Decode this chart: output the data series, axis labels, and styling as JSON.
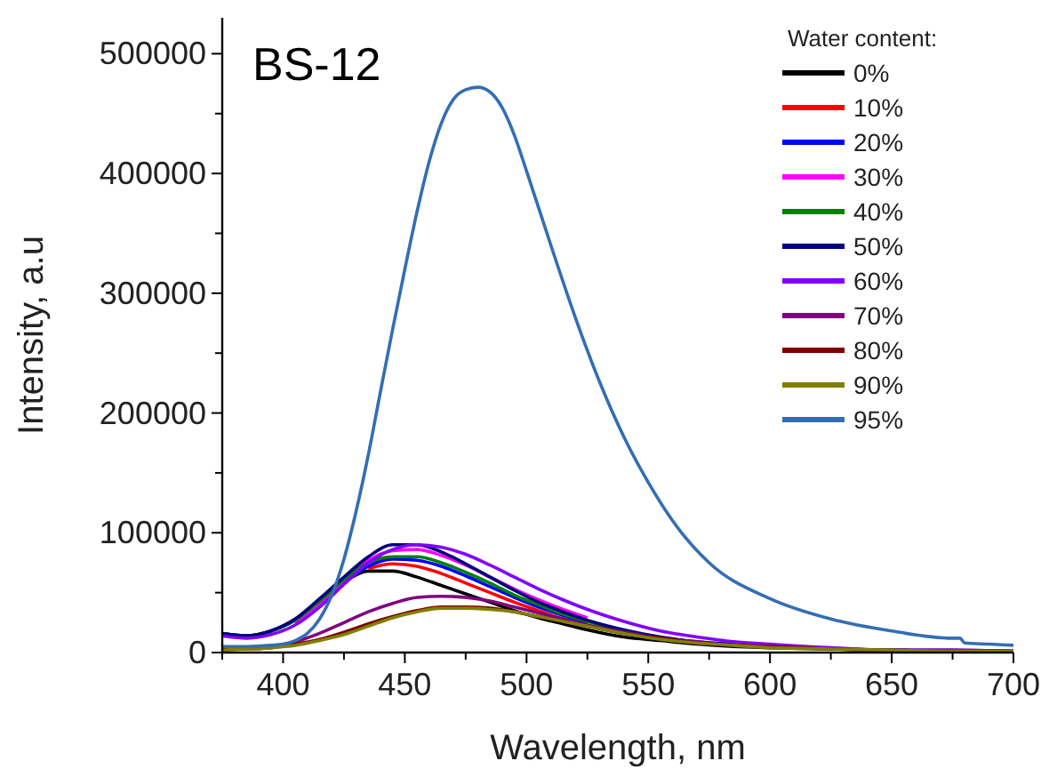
{
  "chart_data": {
    "type": "line",
    "title": "BS-12",
    "xlabel": "Wavelength, nm",
    "ylabel": "Intensity, a.u",
    "legend_title": "Water content:",
    "legend": "top right",
    "grid": false,
    "marker": "none",
    "line_style": "solid",
    "xlim": [
      375,
      700
    ],
    "ylim": [
      0,
      530000
    ],
    "xticks": [
      {
        "value": 375,
        "label": null
      },
      400,
      {
        "value": 425,
        "label": null
      },
      450,
      {
        "value": 475,
        "label": null
      },
      500,
      {
        "value": 525,
        "label": null
      },
      550,
      {
        "value": 575,
        "label": null
      },
      600,
      {
        "value": 625,
        "label": null
      },
      650,
      {
        "value": 675,
        "label": null
      },
      700
    ],
    "yticks": [
      0,
      {
        "value": 50000,
        "label": null
      },
      100000,
      {
        "value": 150000,
        "label": null
      },
      200000,
      {
        "value": 250000,
        "label": null
      },
      300000,
      {
        "value": 350000,
        "label": null
      },
      400000,
      {
        "value": 450000,
        "label": null
      },
      500000
    ],
    "x": [
      375,
      385,
      395,
      405,
      415,
      425,
      435,
      445,
      455,
      465,
      475,
      485,
      495,
      505,
      515,
      525,
      540,
      555,
      570,
      585,
      600,
      625,
      650,
      675,
      700
    ],
    "series": [
      {
        "name": "0%",
        "color": "#000000",
        "values": [
          16000,
          14000,
          18000,
          28000,
          44000,
          59000,
          68000,
          68000,
          63000,
          56000,
          49000,
          42000,
          35000,
          29000,
          24000,
          19000,
          13000,
          10000,
          7000,
          5000,
          4000,
          3000,
          2000,
          1000,
          1000
        ]
      },
      {
        "name": "10%",
        "color": "#ff0000",
        "values": [
          null,
          null,
          null,
          null,
          null,
          null,
          70000,
          74000,
          72000,
          66000,
          58000,
          50000,
          42000,
          35000,
          28000,
          23000,
          null,
          null,
          null,
          null,
          null,
          null,
          null,
          null,
          null
        ]
      },
      {
        "name": "20%",
        "color": "#0000ff",
        "values": [
          null,
          null,
          null,
          null,
          41000,
          58000,
          72000,
          78000,
          77000,
          72000,
          64000,
          55000,
          46000,
          38000,
          31000,
          25000,
          null,
          null,
          null,
          null,
          null,
          null,
          null,
          null,
          null
        ]
      },
      {
        "name": "30%",
        "color": "#ff00ff",
        "values": [
          null,
          null,
          null,
          24000,
          40000,
          60000,
          77000,
          85000,
          86000,
          81000,
          73000,
          63000,
          53000,
          44000,
          36000,
          29000,
          null,
          null,
          null,
          null,
          null,
          null,
          null,
          null,
          null
        ]
      },
      {
        "name": "40%",
        "color": "#008000",
        "values": [
          16000,
          14000,
          18000,
          27000,
          43000,
          61000,
          75000,
          80000,
          80000,
          75000,
          67000,
          58000,
          48000,
          40000,
          32000,
          26000,
          18000,
          null,
          null,
          null,
          null,
          null,
          null,
          null,
          null
        ]
      },
      {
        "name": "50%",
        "color": "#000080",
        "values": [
          16000,
          14000,
          18000,
          28000,
          45000,
          63000,
          80000,
          90000,
          90000,
          84000,
          74000,
          63000,
          52000,
          42000,
          34000,
          27000,
          19000,
          13000,
          9000,
          7000,
          5000,
          3000,
          2000,
          2000,
          1000
        ]
      },
      {
        "name": "60%",
        "color": "#8000ff",
        "values": [
          14000,
          12000,
          15000,
          23000,
          38000,
          57000,
          75000,
          86000,
          90000,
          88000,
          82000,
          73000,
          63000,
          53000,
          44000,
          36000,
          26000,
          18000,
          13000,
          9000,
          7000,
          4000,
          2000,
          2000,
          1000
        ]
      },
      {
        "name": "70%",
        "color": "#800080",
        "values": [
          null,
          null,
          5000,
          9000,
          16000,
          25000,
          34000,
          41000,
          46000,
          47000,
          46000,
          43000,
          38000,
          33000,
          28000,
          23000,
          17000,
          12000,
          9000,
          6000,
          5000,
          3000,
          2000,
          1000,
          1000
        ]
      },
      {
        "name": "80%",
        "color": "#800000",
        "values": [
          3000,
          3000,
          4000,
          7000,
          11000,
          17000,
          24000,
          30000,
          35000,
          38000,
          38000,
          37000,
          34000,
          30000,
          26000,
          22000,
          16000,
          12000,
          8000,
          6000,
          5000,
          3000,
          2000,
          1000,
          1000
        ]
      },
      {
        "name": "90%",
        "color": "#808000",
        "values": [
          2000,
          3000,
          4000,
          6000,
          10000,
          15000,
          22000,
          29000,
          34000,
          37000,
          37000,
          36000,
          34000,
          30000,
          26000,
          22000,
          16000,
          11000,
          8000,
          6000,
          4000,
          3000,
          2000,
          1000,
          1000
        ]
      },
      {
        "name": "95%",
        "color": "#336eb4",
        "x": [
          375,
          385,
          395,
          400,
          405,
          410,
          415,
          420,
          425,
          430,
          435,
          440,
          445,
          450,
          455,
          460,
          465,
          470,
          475,
          480,
          485,
          490,
          495,
          500,
          510,
          520,
          530,
          540,
          550,
          560,
          575,
          600,
          625,
          650,
          675,
          678,
          680,
          690,
          700
        ],
        "values": [
          5000,
          5000,
          6000,
          7000,
          10000,
          16000,
          28000,
          48000,
          78000,
          118000,
          165000,
          218000,
          270000,
          320000,
          368000,
          410000,
          442000,
          462000,
          470000,
          472000,
          468000,
          455000,
          432000,
          402000,
          340000,
          280000,
          226000,
          180000,
          142000,
          110000,
          75000,
          45000,
          28000,
          18000,
          12000,
          12000,
          8000,
          7000,
          6000
        ]
      }
    ]
  }
}
